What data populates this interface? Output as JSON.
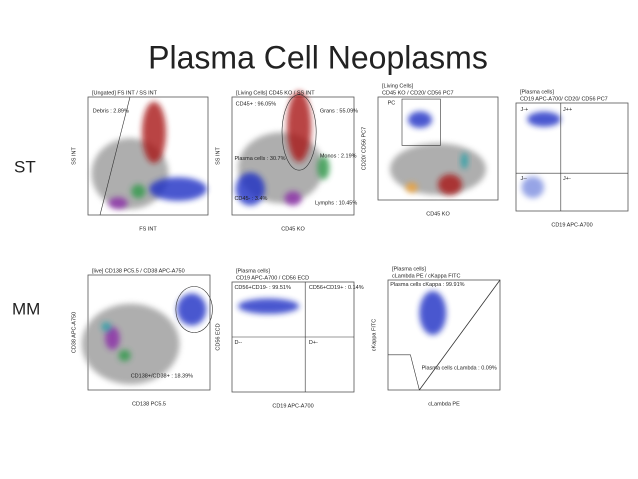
{
  "title": "Plasma Cell Neoplasms",
  "rows": [
    {
      "label": "ST"
    },
    {
      "label": "MM"
    }
  ],
  "plots": [
    {
      "header": [
        "[Ungated] FS INT / SS INT"
      ],
      "x_label": "FS INT",
      "y_label": "SS INT",
      "gates": [
        "Debris : 2.89%"
      ]
    },
    {
      "header": [
        "[Living Cells] CD45 KO / SS INT"
      ],
      "x_label": "CD45 KO",
      "y_label": "SS INT",
      "gates": [
        "CD45+ : 96.05%",
        "Grans : 55.09%",
        "Plasma cells : 30.7%",
        "Monos : 2.19%",
        "CD45- : 3.4%",
        "Lymphs : 10.45%"
      ]
    },
    {
      "header": [
        "[Living Cells]",
        "CD45 KO / CD20/ CD56 PC7"
      ],
      "x_label": "CD45 KO",
      "y_label": "CD20/ CD56 PC7",
      "gates": [
        "PC"
      ]
    },
    {
      "header": [
        "[Plasma cells]",
        "CD19 APC-A700/ CD20/ CD56 PC7"
      ],
      "x_label": "CD19 APC-A700",
      "y_label": "",
      "gates": [
        "J-+",
        "J++",
        "J--",
        "J+-"
      ]
    },
    {
      "header": [
        "[live] CD138 PC5.5 / CD38 APC-A750"
      ],
      "x_label": "CD138 PC5.5",
      "y_label": "CD38 APC-A750",
      "gates": [
        "CD138+/CD38+ : 18.39%"
      ]
    },
    {
      "header": [
        "[Plasma cells]",
        "CD19 APC-A700 / CD56 ECD"
      ],
      "x_label": "CD19 APC-A700",
      "y_label": "CD56 ECD",
      "gates": [
        "CD56+CD19- : 99.51%",
        "CD56+CD19+ : 0.14%",
        "D--",
        "D+-"
      ]
    },
    {
      "header": [
        "[Plasma cells]",
        "cLambda PE / cKappa FITC"
      ],
      "x_label": "cLambda PE",
      "y_label": "cKappa FITC",
      "gates": [
        "Plasma cells cKappa : 99.91%",
        "Plasma cells cLambda : 0.09%"
      ]
    }
  ]
}
